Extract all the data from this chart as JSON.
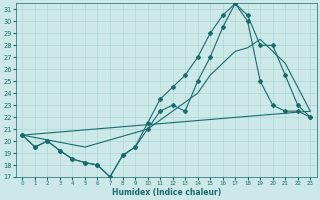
{
  "xlabel": "Humidex (Indice chaleur)",
  "background_color": "#cce8e8",
  "grid_color": "#b0d8d8",
  "line_color": "#1a6b6b",
  "xlim": [
    -0.5,
    23.5
  ],
  "ylim": [
    17,
    31.5
  ],
  "yticks": [
    17,
    18,
    19,
    20,
    21,
    22,
    23,
    24,
    25,
    26,
    27,
    28,
    29,
    30,
    31
  ],
  "xticks": [
    0,
    1,
    2,
    3,
    4,
    5,
    6,
    7,
    8,
    9,
    10,
    11,
    12,
    13,
    14,
    15,
    16,
    17,
    18,
    19,
    20,
    21,
    22,
    23
  ],
  "series": [
    {
      "x": [
        0,
        1,
        2,
        3,
        4,
        5,
        6,
        7,
        8,
        9,
        10,
        11,
        12,
        13,
        14,
        15,
        16,
        17,
        18,
        19,
        20,
        21,
        22,
        23
      ],
      "y": [
        20.5,
        19.5,
        20.0,
        19.2,
        18.5,
        18.2,
        18.0,
        17.0,
        18.8,
        19.5,
        21.0,
        22.5,
        23.0,
        22.5,
        25.0,
        27.0,
        29.5,
        31.5,
        30.0,
        25.0,
        23.0,
        22.5,
        22.5,
        22.0
      ],
      "has_markers": true
    },
    {
      "x": [
        0,
        1,
        2,
        3,
        4,
        5,
        6,
        7,
        8,
        9,
        10,
        11,
        12,
        13,
        14,
        15,
        16,
        17,
        18,
        19,
        20,
        21,
        22,
        23
      ],
      "y": [
        20.5,
        19.5,
        20.0,
        19.2,
        18.5,
        18.2,
        18.0,
        17.0,
        18.8,
        19.5,
        21.5,
        23.5,
        24.5,
        25.5,
        27.0,
        29.0,
        30.5,
        31.5,
        30.5,
        28.0,
        28.0,
        25.5,
        23.0,
        22.0
      ],
      "has_markers": true
    },
    {
      "x": [
        0,
        23
      ],
      "y": [
        20.5,
        22.5
      ],
      "has_markers": false
    },
    {
      "x": [
        0,
        5,
        10,
        14,
        15,
        16,
        17,
        18,
        19,
        20,
        21,
        22,
        23
      ],
      "y": [
        20.5,
        19.5,
        21.0,
        24.0,
        25.5,
        26.5,
        27.5,
        27.8,
        28.5,
        27.5,
        26.5,
        24.5,
        22.5
      ],
      "has_markers": false
    }
  ]
}
